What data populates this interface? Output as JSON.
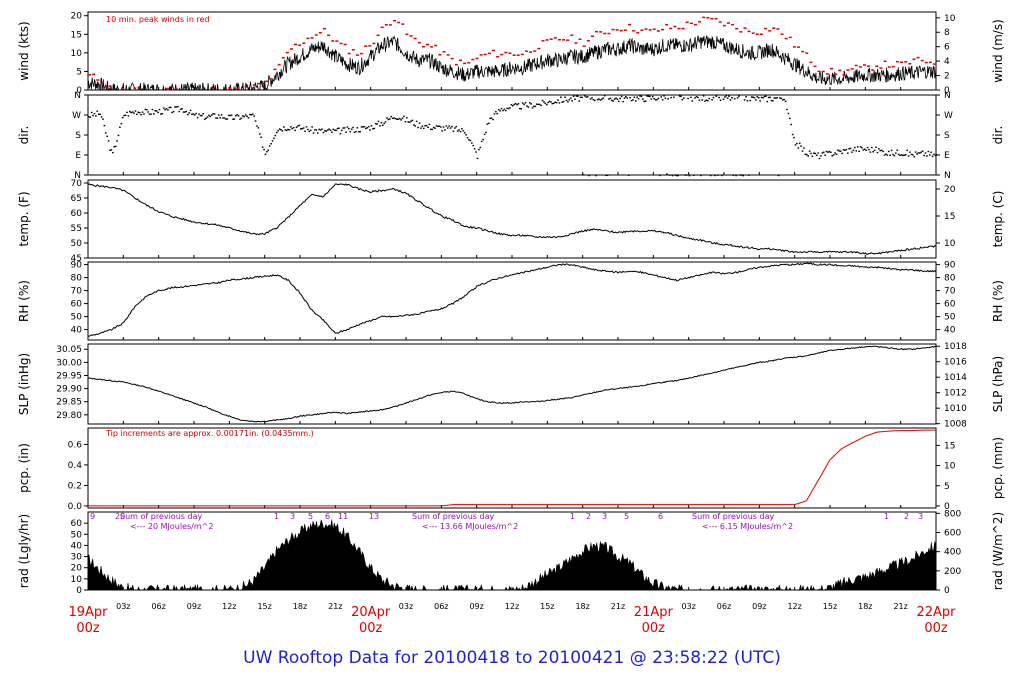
{
  "title": "UW Rooftop Data for 20100418  to  20100421 @ 23:58:22  (UTC)",
  "colors": {
    "data": "#000000",
    "peak": "#e00000",
    "pcp": "#e00000",
    "note": "#d00000",
    "purple": "#9a10c0",
    "dates": "#e00000",
    "title": "#1f1fd6"
  },
  "x_axis": {
    "hour_ticks": [
      "03z",
      "06z",
      "09z",
      "12z",
      "15z",
      "18z",
      "21z",
      "03z",
      "06z",
      "09z",
      "12z",
      "15z",
      "18z",
      "21z",
      "03z",
      "06z",
      "09z",
      "12z",
      "15z",
      "18z",
      "21z"
    ],
    "dates": [
      {
        "label": "19Apr",
        "sub": "00z"
      },
      {
        "label": "20Apr",
        "sub": "00z"
      },
      {
        "label": "21Apr",
        "sub": "00z"
      },
      {
        "label": "22Apr",
        "sub": "00z"
      }
    ],
    "range_hours": [
      0,
      72
    ]
  },
  "chart_data": [
    {
      "type": "line",
      "panel": "wind",
      "ylabel": "wind (kts)",
      "ylabel_right": "wind (m/s)",
      "note": "10 min. peak winds in red",
      "ylim": [
        0,
        21
      ],
      "yticks": [
        0,
        5,
        10,
        15,
        20
      ],
      "yticks_right": [
        0,
        2,
        4,
        6,
        8,
        10
      ],
      "series": [
        {
          "name": "10 min. peak winds",
          "x": [
            0,
            1,
            2,
            3,
            4,
            5,
            6,
            7,
            8,
            9,
            10,
            11,
            12,
            13,
            14,
            15,
            16,
            17,
            18,
            19,
            20,
            21,
            22,
            23,
            24,
            25,
            26,
            27,
            28,
            29,
            30,
            31,
            32,
            33,
            34,
            35,
            36,
            37,
            38,
            39,
            40,
            41,
            42,
            43,
            44,
            45,
            46,
            47,
            48,
            49,
            50,
            51,
            52,
            53,
            54,
            55,
            56,
            57,
            58,
            59,
            60,
            61,
            62,
            63,
            64,
            65,
            66,
            67,
            68,
            69,
            70,
            71,
            72
          ],
          "values": [
            4,
            3,
            0,
            0,
            0,
            0,
            0,
            0,
            0,
            0,
            0,
            0,
            0,
            0,
            1,
            2,
            6,
            11,
            13,
            15,
            16,
            13,
            11,
            10,
            13,
            17,
            20,
            15,
            13,
            12,
            10,
            8,
            7,
            9,
            10,
            10,
            10,
            10,
            12,
            13,
            14,
            14,
            13,
            15,
            16,
            17,
            17,
            16,
            16,
            17,
            17,
            18,
            19,
            19,
            18,
            17,
            16,
            16,
            17,
            15,
            12,
            9,
            6,
            5,
            5,
            6,
            6,
            7,
            7,
            7,
            8,
            8,
            8
          ]
        },
        {
          "name": "wind speed",
          "x": [
            0,
            1,
            2,
            3,
            4,
            5,
            6,
            7,
            8,
            9,
            10,
            11,
            12,
            13,
            14,
            15,
            16,
            17,
            18,
            19,
            20,
            21,
            22,
            23,
            24,
            25,
            26,
            27,
            28,
            29,
            30,
            31,
            32,
            33,
            34,
            35,
            36,
            37,
            38,
            39,
            40,
            41,
            42,
            43,
            44,
            45,
            46,
            47,
            48,
            49,
            50,
            51,
            52,
            53,
            54,
            55,
            56,
            57,
            58,
            59,
            60,
            61,
            62,
            63,
            64,
            65,
            66,
            67,
            68,
            69,
            70,
            71,
            72
          ],
          "values": [
            2,
            1.5,
            0,
            0,
            0,
            0,
            0,
            0,
            0,
            0,
            0,
            0,
            0,
            0,
            0.5,
            1,
            4,
            7,
            9,
            11,
            12,
            9,
            7,
            6,
            9,
            12,
            13,
            10,
            8,
            8,
            6,
            5,
            4,
            5,
            5,
            5,
            6,
            6,
            7,
            8,
            8,
            9,
            9,
            10,
            11,
            11,
            12,
            11,
            11,
            12,
            12,
            12,
            13,
            13,
            12,
            11,
            10,
            10,
            11,
            9,
            7,
            5,
            3,
            3,
            3,
            3.5,
            4,
            4,
            4,
            4.5,
            4.5,
            5,
            5
          ]
        }
      ]
    },
    {
      "type": "scatter",
      "panel": "dir",
      "ylabel": "dir.",
      "ylabel_right": "dir.",
      "yticks": [
        "N",
        "W",
        "S",
        "E",
        "N"
      ],
      "ylim": [
        0,
        360
      ],
      "x": [
        0,
        1,
        2,
        3,
        4,
        5,
        6,
        7,
        8,
        9,
        10,
        11,
        12,
        13,
        14,
        15,
        16,
        17,
        18,
        19,
        20,
        21,
        22,
        23,
        24,
        25,
        26,
        27,
        28,
        29,
        30,
        31,
        32,
        33,
        34,
        35,
        36,
        37,
        38,
        39,
        40,
        41,
        42,
        43,
        44,
        45,
        46,
        47,
        48,
        49,
        50,
        51,
        52,
        53,
        54,
        55,
        56,
        57,
        58,
        59,
        60,
        61,
        62,
        63,
        64,
        65,
        66,
        67,
        68,
        69,
        70,
        71,
        72
      ],
      "values": [
        270,
        280,
        90,
        275,
        290,
        285,
        290,
        295,
        300,
        270,
        265,
        270,
        260,
        265,
        270,
        100,
        210,
        220,
        215,
        205,
        200,
        200,
        205,
        210,
        220,
        240,
        270,
        250,
        230,
        220,
        215,
        210,
        200,
        90,
        250,
        300,
        310,
        315,
        320,
        330,
        340,
        345,
        350,
        352,
        350,
        345,
        350,
        348,
        350,
        355,
        352,
        350,
        350,
        348,
        350,
        350,
        350,
        345,
        348,
        355,
        150,
        100,
        90,
        100,
        110,
        120,
        120,
        115,
        100,
        105,
        95,
        100,
        90
      ]
    },
    {
      "type": "line",
      "panel": "temp",
      "ylabel": "temp. (F)",
      "ylabel_right": "temp. (C)",
      "ylim": [
        45,
        71
      ],
      "yticks": [
        45,
        50,
        55,
        60,
        65,
        70
      ],
      "yticks_right": [
        10,
        15,
        20
      ],
      "x": [
        0,
        1,
        2,
        3,
        4,
        5,
        6,
        7,
        8,
        9,
        10,
        11,
        12,
        13,
        14,
        15,
        16,
        17,
        18,
        19,
        20,
        21,
        22,
        23,
        24,
        25,
        26,
        27,
        28,
        29,
        30,
        31,
        32,
        33,
        34,
        35,
        36,
        37,
        38,
        39,
        40,
        41,
        42,
        43,
        44,
        45,
        46,
        47,
        48,
        49,
        50,
        51,
        52,
        53,
        54,
        55,
        56,
        57,
        58,
        59,
        60,
        61,
        62,
        63,
        64,
        65,
        66,
        67,
        68,
        69,
        70,
        71,
        72
      ],
      "values": [
        69.5,
        69,
        68.5,
        67.5,
        65,
        62.5,
        60.5,
        59,
        58,
        57,
        56.5,
        56,
        55,
        54,
        53,
        53,
        55,
        58.5,
        62.5,
        66,
        65.5,
        69.5,
        69.5,
        68,
        67,
        67.5,
        68,
        66.5,
        64,
        61.5,
        59,
        57.5,
        55.5,
        55,
        54,
        53,
        52.5,
        52.5,
        52,
        52,
        52,
        53,
        54,
        54.5,
        54,
        53.5,
        54,
        54,
        54,
        53.5,
        52.5,
        51.5,
        51,
        50,
        49.5,
        49,
        48.5,
        48,
        48,
        47.5,
        47,
        47,
        47,
        47,
        47,
        47,
        46.5,
        46.5,
        47,
        47.5,
        48,
        48.5,
        49
      ]
    },
    {
      "type": "line",
      "panel": "rh",
      "ylabel": "RH (%)",
      "ylabel_right": "RH (%)",
      "ylim": [
        32,
        92
      ],
      "yticks": [
        40,
        50,
        60,
        70,
        80,
        90
      ],
      "yticks_right": [
        40,
        50,
        60,
        70,
        80,
        90
      ],
      "x": [
        0,
        1,
        2,
        3,
        4,
        5,
        6,
        7,
        8,
        9,
        10,
        11,
        12,
        13,
        14,
        15,
        16,
        17,
        18,
        19,
        20,
        21,
        22,
        23,
        24,
        25,
        26,
        27,
        28,
        29,
        30,
        31,
        32,
        33,
        34,
        35,
        36,
        37,
        38,
        39,
        40,
        41,
        42,
        43,
        44,
        45,
        46,
        47,
        48,
        49,
        50,
        51,
        52,
        53,
        54,
        55,
        56,
        57,
        58,
        59,
        60,
        61,
        62,
        63,
        64,
        65,
        66,
        67,
        68,
        69,
        70,
        71,
        72
      ],
      "values": [
        35,
        37,
        40,
        45,
        58,
        66,
        70,
        72,
        73,
        74,
        75,
        76,
        78,
        79,
        80,
        81,
        82,
        78,
        68,
        55,
        47,
        37,
        40,
        44,
        47,
        50,
        50,
        51,
        52,
        54,
        56,
        60,
        66,
        73,
        77,
        80,
        82,
        84,
        86,
        88,
        90,
        90,
        88,
        86,
        85,
        84,
        85,
        84,
        82,
        80,
        78,
        80,
        82,
        84,
        83,
        84,
        86,
        88,
        89,
        90,
        90,
        91,
        90,
        90,
        89,
        89,
        88,
        88,
        87,
        86,
        86,
        85,
        85
      ]
    },
    {
      "type": "line",
      "panel": "slp",
      "ylabel": "SLP (inHg)",
      "ylabel_right": "SLP (hPa)",
      "ylim": [
        29.765,
        30.07
      ],
      "yticks": [
        29.8,
        29.85,
        29.9,
        29.95,
        30.0,
        30.05
      ],
      "yticks_right": [
        1008,
        1010,
        1012,
        1014,
        1016,
        1018
      ],
      "x": [
        0,
        1,
        2,
        3,
        4,
        5,
        6,
        7,
        8,
        9,
        10,
        11,
        12,
        13,
        14,
        15,
        16,
        17,
        18,
        19,
        20,
        21,
        22,
        23,
        24,
        25,
        26,
        27,
        28,
        29,
        30,
        31,
        32,
        33,
        34,
        35,
        36,
        37,
        38,
        39,
        40,
        41,
        42,
        43,
        44,
        45,
        46,
        47,
        48,
        49,
        50,
        51,
        52,
        53,
        54,
        55,
        56,
        57,
        58,
        59,
        60,
        61,
        62,
        63,
        64,
        65,
        66,
        67,
        68,
        69,
        70,
        71,
        72
      ],
      "values": [
        29.94,
        29.935,
        29.93,
        29.925,
        29.915,
        29.905,
        29.89,
        29.875,
        29.86,
        29.845,
        29.83,
        29.81,
        29.795,
        29.78,
        29.775,
        29.775,
        29.78,
        29.785,
        29.795,
        29.8,
        29.805,
        29.81,
        29.805,
        29.81,
        29.815,
        29.82,
        29.83,
        29.845,
        29.86,
        29.875,
        29.885,
        29.89,
        29.88,
        29.86,
        29.85,
        29.845,
        29.845,
        29.85,
        29.85,
        29.855,
        29.86,
        29.865,
        29.875,
        29.885,
        29.895,
        29.9,
        29.905,
        29.91,
        29.92,
        29.925,
        29.93,
        29.94,
        29.95,
        29.96,
        29.97,
        29.98,
        29.99,
        30.0,
        30.005,
        30.015,
        30.02,
        30.025,
        30.035,
        30.045,
        30.05,
        30.055,
        30.06,
        30.06,
        30.055,
        30.05,
        30.05,
        30.055,
        30.06
      ]
    },
    {
      "type": "line",
      "panel": "pcp",
      "ylabel": "pcp. (in)",
      "ylabel_right": "pcp. (mm)",
      "note": "Tip increments are approx. 0.00171in. (0.0435mm.)",
      "ylim": [
        -0.02,
        0.76
      ],
      "yticks": [
        0.0,
        0.2,
        0.4,
        0.6
      ],
      "yticks_right": [
        0,
        5,
        10,
        15
      ],
      "x": [
        0,
        30,
        31,
        60,
        61,
        62,
        63,
        64,
        65,
        66,
        67,
        68,
        69,
        70,
        71,
        72
      ],
      "values": [
        0.0,
        0.0,
        0.013,
        0.013,
        0.05,
        0.25,
        0.45,
        0.56,
        0.62,
        0.68,
        0.72,
        0.73,
        0.735,
        0.735,
        0.74,
        0.74
      ]
    },
    {
      "type": "area",
      "panel": "rad",
      "ylabel": "rad (Lgly/hr)",
      "ylabel_right": "rad (W/m^2)",
      "ylim": [
        0,
        70
      ],
      "yticks": [
        0,
        10,
        20,
        30,
        40,
        50,
        60
      ],
      "yticks_right": [
        0,
        200,
        400,
        600,
        800
      ],
      "x": [
        0,
        1,
        2,
        3,
        4,
        5,
        6,
        7,
        8,
        9,
        10,
        11,
        12,
        13,
        14,
        15,
        16,
        17,
        18,
        19,
        20,
        21,
        22,
        23,
        24,
        25,
        26,
        27,
        28,
        29,
        30,
        31,
        32,
        33,
        34,
        35,
        36,
        37,
        38,
        39,
        40,
        41,
        42,
        43,
        44,
        45,
        46,
        47,
        48,
        49,
        50,
        51,
        52,
        53,
        54,
        55,
        56,
        57,
        58,
        59,
        60,
        61,
        62,
        63,
        64,
        65,
        66,
        67,
        68,
        69,
        70,
        71,
        72
      ],
      "values": [
        28,
        18,
        9,
        2,
        0,
        0,
        0,
        0,
        0,
        0,
        0,
        0,
        0,
        2,
        8,
        20,
        35,
        45,
        52,
        58,
        60,
        58,
        48,
        35,
        20,
        9,
        4,
        1,
        0,
        0,
        0,
        0,
        0,
        0,
        0,
        0,
        0,
        2,
        8,
        14,
        20,
        28,
        35,
        40,
        38,
        30,
        24,
        14,
        6,
        2,
        0,
        0,
        0,
        0,
        0,
        0,
        0,
        0,
        0,
        0,
        0,
        0,
        0,
        2,
        6,
        10,
        12,
        16,
        20,
        24,
        28,
        35,
        40
      ],
      "daily_labels": [
        {
          "line1": "Sum of previous day",
          "line2": "<--- 20 MJoules/m^2"
        },
        {
          "line1": "Sum of previous day",
          "line2": "<--- 13.66 MJoules/m^2"
        },
        {
          "line1": "Sum of previous day",
          "line2": "<--- 6.15 MJoules/m^2"
        }
      ],
      "digit_markers": [
        "9",
        "20",
        "1",
        "3",
        "5",
        "6",
        "11",
        "13",
        "1",
        "2",
        "3",
        "5",
        "6",
        "1",
        "2",
        "3"
      ]
    }
  ]
}
